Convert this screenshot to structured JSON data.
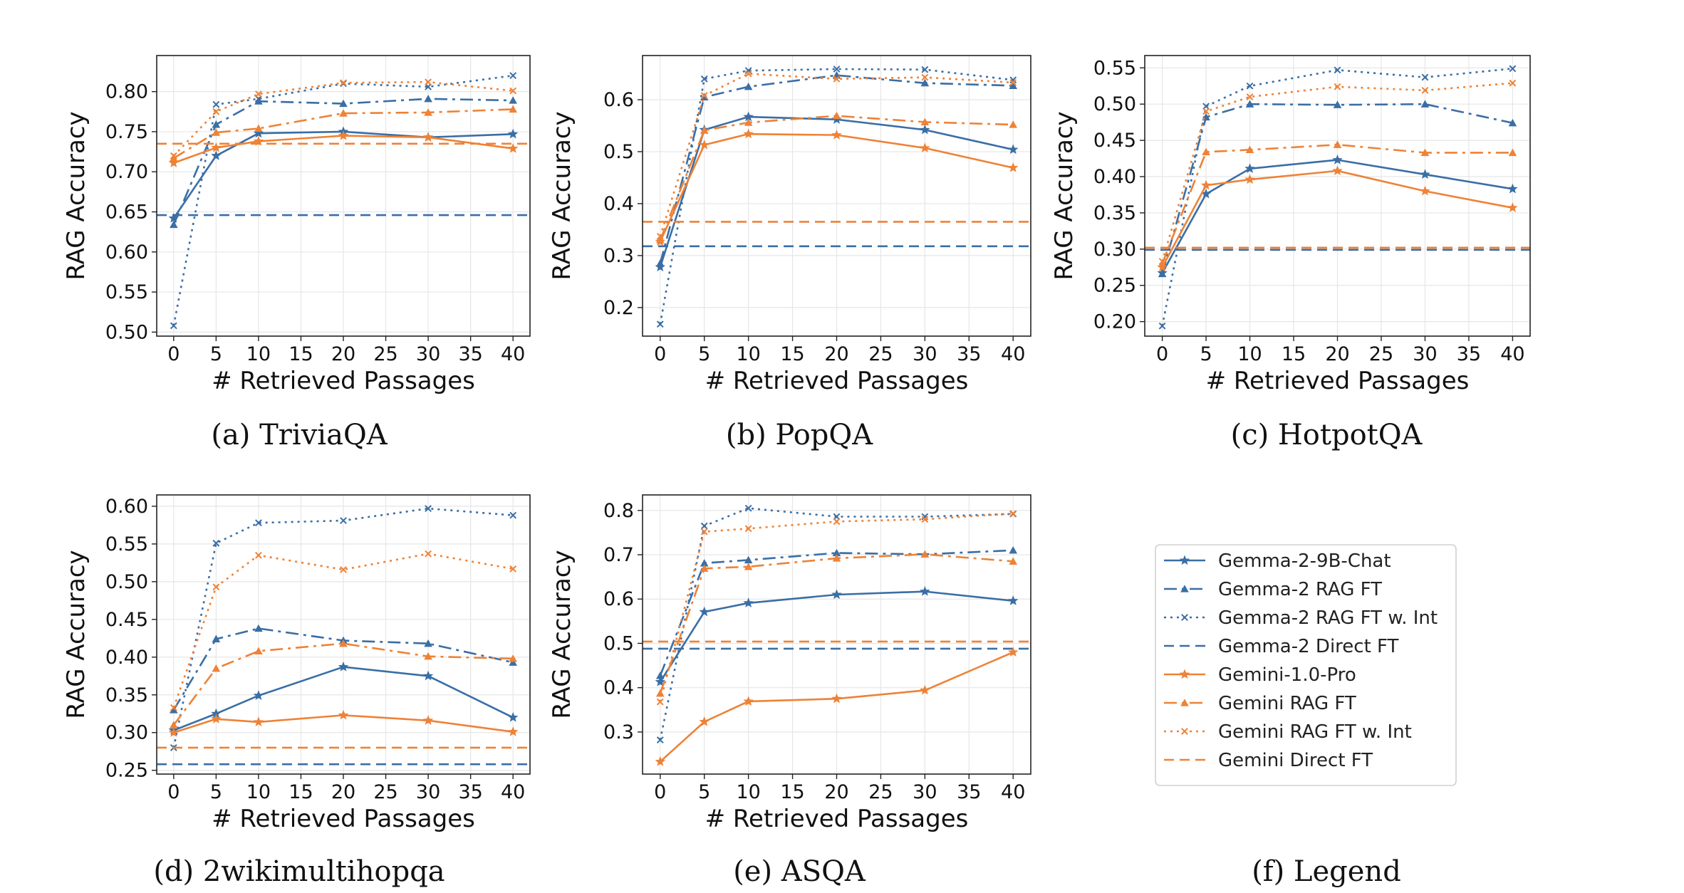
{
  "colors": {
    "blue": "#3a6ea5",
    "orange": "#ee8236"
  },
  "series_styles": [
    {
      "name": "Gemma-2-9B-Chat",
      "color": "blue",
      "dash": "solid",
      "marker": "star"
    },
    {
      "name": "Gemma-2 RAG FT",
      "color": "blue",
      "dash": "dashdot",
      "marker": "triangle"
    },
    {
      "name": "Gemma-2 RAG FT w. Int",
      "color": "blue",
      "dash": "dotted",
      "marker": "x"
    },
    {
      "name": "Gemma-2 Direct FT",
      "color": "blue",
      "dash": "dashed",
      "marker": "none"
    },
    {
      "name": "Gemini-1.0-Pro",
      "color": "orange",
      "dash": "solid",
      "marker": "star"
    },
    {
      "name": "Gemini RAG FT",
      "color": "orange",
      "dash": "dashdot",
      "marker": "triangle"
    },
    {
      "name": "Gemini RAG FT w. Int",
      "color": "orange",
      "dash": "dotted",
      "marker": "x"
    },
    {
      "name": "Gemini Direct FT",
      "color": "orange",
      "dash": "dashed",
      "marker": "none"
    }
  ],
  "legend": {
    "caption": "(f)  Legend",
    "entries": [
      "Gemma-2-9B-Chat",
      "Gemma-2 RAG FT",
      "Gemma-2 RAG FT w. Int",
      "Gemma-2 Direct FT",
      "Gemini-1.0-Pro",
      "Gemini RAG FT",
      "Gemini RAG FT w. Int",
      "Gemini Direct FT"
    ]
  },
  "chart_data": [
    {
      "type": "line",
      "caption": "(a)  TriviaQA",
      "xlabel": "# Retrieved Passages",
      "ylabel": "RAG Accuracy",
      "xlim": [
        -2,
        42
      ],
      "ylim": [
        0.495,
        0.845
      ],
      "xticks": [
        0,
        5,
        10,
        15,
        20,
        25,
        30,
        35,
        40
      ],
      "yticks": [
        0.5,
        0.55,
        0.6,
        0.65,
        0.7,
        0.75,
        0.8
      ],
      "ytick_labels": [
        "0.50",
        "0.55",
        "0.60",
        "0.65",
        "0.70",
        "0.75",
        "0.80"
      ],
      "grid": true,
      "x": [
        0,
        5,
        10,
        20,
        30,
        40
      ],
      "series": [
        {
          "name": "Gemma-2-9B-Chat",
          "values": [
            0.642,
            0.72,
            0.748,
            0.75,
            0.743,
            0.747
          ]
        },
        {
          "name": "Gemma-2 RAG FT",
          "values": [
            0.634,
            0.759,
            0.788,
            0.785,
            0.791,
            0.789
          ]
        },
        {
          "name": "Gemma-2 RAG FT w. Int",
          "values": [
            0.508,
            0.784,
            0.791,
            0.81,
            0.806,
            0.82
          ]
        },
        {
          "name": "Gemma-2 Direct FT",
          "hline": 0.646
        },
        {
          "name": "Gemini-1.0-Pro",
          "values": [
            0.711,
            0.73,
            0.738,
            0.745,
            0.743,
            0.729
          ]
        },
        {
          "name": "Gemini RAG FT",
          "values": [
            0.717,
            0.749,
            0.754,
            0.773,
            0.774,
            0.778
          ]
        },
        {
          "name": "Gemini RAG FT w. Int",
          "values": [
            0.72,
            0.775,
            0.797,
            0.811,
            0.812,
            0.801
          ]
        },
        {
          "name": "Gemini Direct FT",
          "hline": 0.735
        }
      ]
    },
    {
      "type": "line",
      "caption": "(b)  PopQA",
      "xlabel": "# Retrieved Passages",
      "ylabel": "RAG Accuracy",
      "xlim": [
        -2,
        42
      ],
      "ylim": [
        0.145,
        0.685
      ],
      "xticks": [
        0,
        5,
        10,
        15,
        20,
        25,
        30,
        35,
        40
      ],
      "yticks": [
        0.2,
        0.3,
        0.4,
        0.5,
        0.6
      ],
      "ytick_labels": [
        "0.2",
        "0.3",
        "0.4",
        "0.5",
        "0.6"
      ],
      "grid": true,
      "x": [
        0,
        5,
        10,
        20,
        30,
        40
      ],
      "series": [
        {
          "name": "Gemma-2-9B-Chat",
          "values": [
            0.278,
            0.542,
            0.567,
            0.562,
            0.542,
            0.504
          ]
        },
        {
          "name": "Gemma-2 RAG FT",
          "values": [
            0.285,
            0.605,
            0.625,
            0.647,
            0.632,
            0.627
          ]
        },
        {
          "name": "Gemma-2 RAG FT w. Int",
          "values": [
            0.168,
            0.64,
            0.656,
            0.659,
            0.658,
            0.638
          ]
        },
        {
          "name": "Gemma-2 Direct FT",
          "hline": 0.318
        },
        {
          "name": "Gemini-1.0-Pro",
          "values": [
            0.327,
            0.513,
            0.534,
            0.532,
            0.507,
            0.469
          ]
        },
        {
          "name": "Gemini RAG FT",
          "values": [
            0.33,
            0.541,
            0.556,
            0.569,
            0.557,
            0.552
          ]
        },
        {
          "name": "Gemini RAG FT w. Int",
          "values": [
            0.337,
            0.608,
            0.65,
            0.64,
            0.643,
            0.633
          ]
        },
        {
          "name": "Gemini Direct FT",
          "hline": 0.365
        }
      ]
    },
    {
      "type": "line",
      "caption": "(c)  HotpotQA",
      "xlabel": "# Retrieved Passages",
      "ylabel": "RAG Accuracy",
      "xlim": [
        -2,
        42
      ],
      "ylim": [
        0.18,
        0.567
      ],
      "xticks": [
        0,
        5,
        10,
        15,
        20,
        25,
        30,
        35,
        40
      ],
      "yticks": [
        0.2,
        0.25,
        0.3,
        0.35,
        0.4,
        0.45,
        0.5,
        0.55
      ],
      "ytick_labels": [
        "0.20",
        "0.25",
        "0.30",
        "0.35",
        "0.40",
        "0.45",
        "0.50",
        "0.55"
      ],
      "grid": true,
      "x": [
        0,
        5,
        10,
        20,
        30,
        40
      ],
      "series": [
        {
          "name": "Gemma-2-9B-Chat",
          "values": [
            0.267,
            0.376,
            0.411,
            0.423,
            0.403,
            0.383
          ]
        },
        {
          "name": "Gemma-2 RAG FT",
          "values": [
            0.266,
            0.482,
            0.5,
            0.499,
            0.5,
            0.474
          ]
        },
        {
          "name": "Gemma-2 RAG FT w. Int",
          "values": [
            0.194,
            0.497,
            0.525,
            0.547,
            0.537,
            0.549
          ]
        },
        {
          "name": "Gemma-2 Direct FT",
          "hline": 0.299
        },
        {
          "name": "Gemini-1.0-Pro",
          "values": [
            0.275,
            0.388,
            0.396,
            0.408,
            0.38,
            0.357
          ]
        },
        {
          "name": "Gemini RAG FT",
          "values": [
            0.28,
            0.434,
            0.437,
            0.444,
            0.433,
            0.433
          ]
        },
        {
          "name": "Gemini RAG FT w. Int",
          "values": [
            0.283,
            0.49,
            0.51,
            0.524,
            0.519,
            0.529
          ]
        },
        {
          "name": "Gemini Direct FT",
          "hline": 0.302
        }
      ]
    },
    {
      "type": "line",
      "caption": "(d)  2wikimultihopqa",
      "xlabel": "# Retrieved Passages",
      "ylabel": "RAG Accuracy",
      "xlim": [
        -2,
        42
      ],
      "ylim": [
        0.245,
        0.615
      ],
      "xticks": [
        0,
        5,
        10,
        15,
        20,
        25,
        30,
        35,
        40
      ],
      "yticks": [
        0.25,
        0.3,
        0.35,
        0.4,
        0.45,
        0.5,
        0.55,
        0.6
      ],
      "ytick_labels": [
        "0.25",
        "0.30",
        "0.35",
        "0.40",
        "0.45",
        "0.50",
        "0.55",
        "0.60"
      ],
      "grid": true,
      "x": [
        0,
        5,
        10,
        20,
        30,
        40
      ],
      "series": [
        {
          "name": "Gemma-2-9B-Chat",
          "values": [
            0.303,
            0.325,
            0.349,
            0.387,
            0.375,
            0.32
          ]
        },
        {
          "name": "Gemma-2 RAG FT",
          "values": [
            0.33,
            0.424,
            0.438,
            0.422,
            0.418,
            0.393
          ]
        },
        {
          "name": "Gemma-2 RAG FT w. Int",
          "values": [
            0.28,
            0.551,
            0.578,
            0.581,
            0.597,
            0.588
          ]
        },
        {
          "name": "Gemma-2 Direct FT",
          "hline": 0.258
        },
        {
          "name": "Gemini-1.0-Pro",
          "values": [
            0.3,
            0.318,
            0.314,
            0.323,
            0.316,
            0.301
          ]
        },
        {
          "name": "Gemini RAG FT",
          "values": [
            0.31,
            0.385,
            0.408,
            0.418,
            0.401,
            0.398
          ]
        },
        {
          "name": "Gemini RAG FT w. Int",
          "values": [
            0.333,
            0.493,
            0.535,
            0.516,
            0.537,
            0.517
          ]
        },
        {
          "name": "Gemini Direct FT",
          "hline": 0.28
        }
      ]
    },
    {
      "type": "line",
      "caption": "(e)  ASQA",
      "xlabel": "# Retrieved Passages",
      "ylabel": "RAG Accuracy",
      "xlim": [
        -2,
        42
      ],
      "ylim": [
        0.205,
        0.835
      ],
      "xticks": [
        0,
        5,
        10,
        15,
        20,
        25,
        30,
        35,
        40
      ],
      "yticks": [
        0.3,
        0.4,
        0.5,
        0.6,
        0.7,
        0.8
      ],
      "ytick_labels": [
        "0.3",
        "0.4",
        "0.5",
        "0.6",
        "0.7",
        "0.8"
      ],
      "grid": true,
      "x": [
        0,
        5,
        10,
        20,
        30,
        40
      ],
      "series": [
        {
          "name": "Gemma-2-9B-Chat",
          "values": [
            0.413,
            0.571,
            0.591,
            0.61,
            0.617,
            0.596
          ]
        },
        {
          "name": "Gemma-2 RAG FT",
          "values": [
            0.427,
            0.681,
            0.688,
            0.704,
            0.701,
            0.71
          ]
        },
        {
          "name": "Gemma-2 RAG FT w. Int",
          "values": [
            0.282,
            0.765,
            0.805,
            0.786,
            0.786,
            0.792
          ]
        },
        {
          "name": "Gemma-2 Direct FT",
          "hline": 0.488
        },
        {
          "name": "Gemini-1.0-Pro",
          "values": [
            0.233,
            0.323,
            0.369,
            0.375,
            0.394,
            0.48
          ]
        },
        {
          "name": "Gemini RAG FT",
          "values": [
            0.387,
            0.669,
            0.673,
            0.692,
            0.701,
            0.685
          ]
        },
        {
          "name": "Gemini RAG FT w. Int",
          "values": [
            0.368,
            0.752,
            0.759,
            0.775,
            0.78,
            0.793
          ]
        },
        {
          "name": "Gemini Direct FT",
          "hline": 0.504
        }
      ]
    }
  ]
}
